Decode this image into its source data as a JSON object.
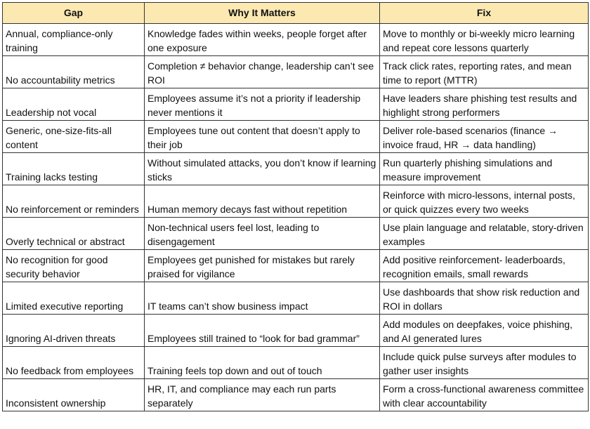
{
  "table": {
    "header_color": "#fce9b2",
    "headers": [
      "Gap",
      "Why It Matters",
      "Fix"
    ],
    "rows": [
      [
        "Annual, compliance-only training",
        "Knowledge fades within weeks, people forget after one exposure",
        "Move to monthly or bi-weekly micro learning and repeat core lessons quarterly"
      ],
      [
        "No accountability metrics",
        "Completion ≠ behavior change, leadership can’t see ROI",
        "Track click rates, reporting rates, and mean time to report (MTTR)"
      ],
      [
        "Leadership not vocal",
        "Employees assume it’s not a priority if leadership never mentions it",
        "Have leaders share phishing test results and highlight strong performers"
      ],
      [
        "Generic, one-size-fits-all content",
        "Employees tune out content that doesn’t apply to their job",
        "Deliver role-based scenarios (finance → invoice fraud, HR → data handling)"
      ],
      [
        "Training lacks testing",
        "Without simulated attacks, you don’t know if learning sticks",
        "Run quarterly phishing simulations and measure improvement"
      ],
      [
        "No reinforcement or reminders",
        "Human memory decays fast without repetition",
        "Reinforce with micro-lessons, internal posts, or quick quizzes every two weeks"
      ],
      [
        "Overly technical or abstract",
        "Non-technical users feel lost, leading to disengagement",
        "Use plain language and relatable, story-driven examples"
      ],
      [
        "No recognition for good security behavior",
        "Employees get punished for mistakes but rarely praised for vigilance",
        "Add positive reinforcement- leaderboards, recognition emails, small rewards"
      ],
      [
        "Limited executive reporting",
        "IT teams can’t show business impact",
        "Use dashboards that show risk reduction and ROI in dollars"
      ],
      [
        "Ignoring AI-driven threats",
        "Employees still trained to “look for bad grammar”",
        "Add modules on deepfakes, voice phishing, and AI generated lures"
      ],
      [
        "No feedback from employees",
        "Training feels top down and out of touch",
        "Include quick pulse surveys after modules to gather user insights"
      ],
      [
        "Inconsistent ownership",
        "HR, IT, and compliance may each run parts separately",
        "Form a cross-functional awareness committee with clear accountability"
      ]
    ]
  }
}
